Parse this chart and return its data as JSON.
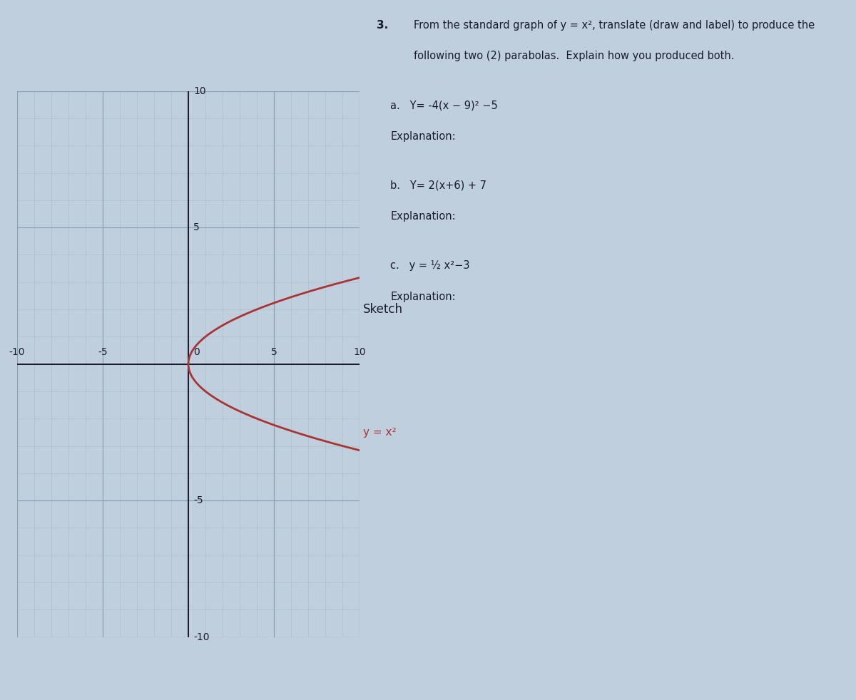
{
  "page_bg_color": "#bfcfdd",
  "curve_color": "#aa3333",
  "axis_color": "#1a1a2e",
  "grid_minor_color": "#a8bece",
  "grid_major_color": "#8aa0b4",
  "x_lim": [
    -10,
    10
  ],
  "y_lim": [
    -10,
    10
  ],
  "x_ticks": [
    -10,
    -5,
    0,
    5,
    10
  ],
  "y_ticks": [
    -10,
    -5,
    0,
    5,
    10
  ],
  "curve_linewidth": 2.0,
  "axis_linewidth": 1.4,
  "sketch_label": "Sketch",
  "curve_label": "y = x²",
  "title_num": "3.",
  "title_line1": "From the standard graph of y = x², translate (draw and label) to produce the",
  "title_line2": "following two (2) parabolas.  Explain how you produced both.",
  "part_a": "Y= -4(x − 9)² −5",
  "part_b": "Y= 2(x+6) + 7",
  "part_c": "y = ½ x²−3",
  "expl": "Explanation:"
}
